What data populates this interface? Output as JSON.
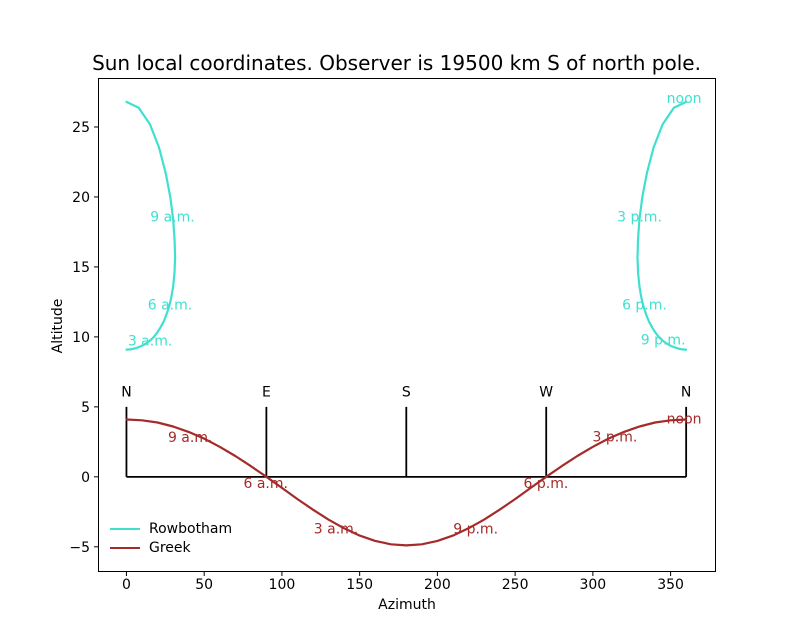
{
  "title": "Sun local coordinates. Observer is 19500 km S of north pole.",
  "chart_data": {
    "type": "line",
    "title": "Sun local coordinates. Observer is 19500 km S of north pole.",
    "xlabel": "Azimuth",
    "ylabel": "Altitude",
    "xlim": [
      -18.3,
      379.2
    ],
    "ylim": [
      -6.8,
      28.5
    ],
    "x_ticks": [
      0,
      50,
      100,
      150,
      200,
      250,
      300,
      350
    ],
    "y_ticks": [
      -5,
      0,
      5,
      10,
      15,
      20,
      25
    ],
    "grid": false,
    "series": [
      {
        "name": "Rowbotham",
        "color": "#40E0D0",
        "segments": [
          [
            [
              0,
              9.09
            ],
            [
              2.6,
              9.11
            ],
            [
              5.1,
              9.17
            ],
            [
              7.6,
              9.26
            ],
            [
              10.2,
              9.38
            ],
            [
              12.6,
              9.53
            ],
            [
              15.0,
              9.73
            ],
            [
              17.4,
              9.97
            ],
            [
              19.6,
              10.28
            ],
            [
              21.8,
              10.66
            ],
            [
              23.8,
              11.07
            ],
            [
              25.7,
              11.59
            ],
            [
              27.4,
              12.16
            ],
            [
              28.9,
              12.85
            ],
            [
              30.1,
              13.63
            ],
            [
              30.9,
              14.58
            ],
            [
              31.3,
              15.64
            ],
            [
              31.0,
              16.93
            ],
            [
              30.1,
              18.36
            ],
            [
              28.2,
              19.99
            ],
            [
              25.2,
              21.74
            ],
            [
              20.9,
              23.56
            ],
            [
              15.1,
              25.2
            ],
            [
              7.9,
              26.37
            ],
            [
              0,
              26.79
            ]
          ],
          [
            [
              360,
              26.79
            ],
            [
              352.1,
              26.37
            ],
            [
              344.9,
              25.2
            ],
            [
              339.1,
              23.56
            ],
            [
              334.8,
              21.74
            ],
            [
              331.8,
              19.99
            ],
            [
              329.9,
              18.36
            ],
            [
              329.0,
              16.93
            ],
            [
              328.7,
              15.64
            ],
            [
              329.1,
              14.58
            ],
            [
              329.9,
              13.63
            ],
            [
              331.1,
              12.85
            ],
            [
              332.6,
              12.16
            ],
            [
              334.3,
              11.59
            ],
            [
              336.2,
              11.07
            ],
            [
              338.2,
              10.66
            ],
            [
              340.4,
              10.28
            ],
            [
              342.6,
              9.97
            ],
            [
              345.0,
              9.73
            ],
            [
              347.4,
              9.53
            ],
            [
              349.8,
              9.38
            ],
            [
              352.4,
              9.26
            ],
            [
              354.9,
              9.17
            ],
            [
              357.4,
              9.11
            ],
            [
              360,
              9.09
            ]
          ]
        ]
      },
      {
        "name": "Greek",
        "color": "#A52A2A",
        "segments": [
          [
            [
              0,
              4.1
            ],
            [
              10,
              4.04
            ],
            [
              20,
              3.88
            ],
            [
              30,
              3.6
            ],
            [
              40,
              3.21
            ],
            [
              50,
              2.73
            ],
            [
              60,
              2.15
            ],
            [
              70,
              1.49
            ],
            [
              80,
              0.77
            ],
            [
              90,
              0.0
            ],
            [
              100,
              -0.79
            ],
            [
              110,
              -1.59
            ],
            [
              120,
              -2.35
            ],
            [
              130,
              -3.06
            ],
            [
              140,
              -3.68
            ],
            [
              150,
              -4.2
            ],
            [
              160,
              -4.58
            ],
            [
              170,
              -4.82
            ],
            [
              180,
              -4.9
            ],
            [
              190,
              -4.82
            ],
            [
              200,
              -4.58
            ],
            [
              210,
              -4.2
            ],
            [
              220,
              -3.68
            ],
            [
              230,
              -3.06
            ],
            [
              240,
              -2.35
            ],
            [
              250,
              -1.59
            ],
            [
              260,
              -0.79
            ],
            [
              270,
              0.0
            ],
            [
              280,
              0.77
            ],
            [
              290,
              1.49
            ],
            [
              300,
              2.15
            ],
            [
              310,
              2.73
            ],
            [
              320,
              3.21
            ],
            [
              330,
              3.6
            ],
            [
              340,
              3.88
            ],
            [
              350,
              4.04
            ],
            [
              360,
              4.1
            ]
          ]
        ]
      }
    ],
    "horizon_line": {
      "altitude": 0,
      "az_start": 0,
      "az_end": 360,
      "color": "#000000"
    },
    "compass_posts": {
      "azimuths": [
        0,
        90,
        180,
        270,
        360
      ],
      "labels": [
        "N",
        "E",
        "S",
        "W",
        "N"
      ],
      "base_altitude": 0,
      "top_altitude": 5,
      "label_altitude": 6.1,
      "color": "#000000"
    },
    "annotations": [
      {
        "series": "Rowbotham",
        "text": "3 a.m.",
        "az": 15.2,
        "alt": 9.75,
        "color": "#40E0D0"
      },
      {
        "series": "Rowbotham",
        "text": "6 a.m.",
        "az": 28.0,
        "alt": 12.3,
        "color": "#40E0D0"
      },
      {
        "series": "Rowbotham",
        "text": "9 a.m.",
        "az": 29.6,
        "alt": 18.6,
        "color": "#40E0D0"
      },
      {
        "series": "Rowbotham",
        "text": "noon",
        "az": 358.7,
        "alt": 27.07,
        "color": "#40E0D0"
      },
      {
        "series": "Rowbotham",
        "text": "3 p.m.",
        "az": 330.0,
        "alt": 18.6,
        "color": "#40E0D0"
      },
      {
        "series": "Rowbotham",
        "text": "6 p.m.",
        "az": 333.2,
        "alt": 12.3,
        "color": "#40E0D0"
      },
      {
        "series": "Rowbotham",
        "text": "9 p.m.",
        "az": 345.2,
        "alt": 9.8,
        "color": "#40E0D0"
      },
      {
        "series": "Greek",
        "text": "9 a.m.",
        "az": 41.0,
        "alt": 2.85,
        "color": "#A52A2A"
      },
      {
        "series": "Greek",
        "text": "6 a.m.",
        "az": 89.6,
        "alt": -0.45,
        "color": "#A52A2A"
      },
      {
        "series": "Greek",
        "text": "3 a.m.",
        "az": 134.8,
        "alt": -3.7,
        "color": "#A52A2A"
      },
      {
        "series": "Greek",
        "text": "9 p.m.",
        "az": 224.6,
        "alt": -3.7,
        "color": "#A52A2A"
      },
      {
        "series": "Greek",
        "text": "6 p.m.",
        "az": 269.8,
        "alt": -0.45,
        "color": "#A52A2A"
      },
      {
        "series": "Greek",
        "text": "3 p.m.",
        "az": 314.2,
        "alt": 2.9,
        "color": "#A52A2A"
      },
      {
        "series": "Greek",
        "text": "noon",
        "az": 358.7,
        "alt": 4.18,
        "color": "#A52A2A"
      }
    ],
    "legend": {
      "position": "lower left",
      "entries": [
        {
          "label": "Rowbotham",
          "color": "#40E0D0"
        },
        {
          "label": "Greek",
          "color": "#A52A2A"
        }
      ]
    }
  }
}
